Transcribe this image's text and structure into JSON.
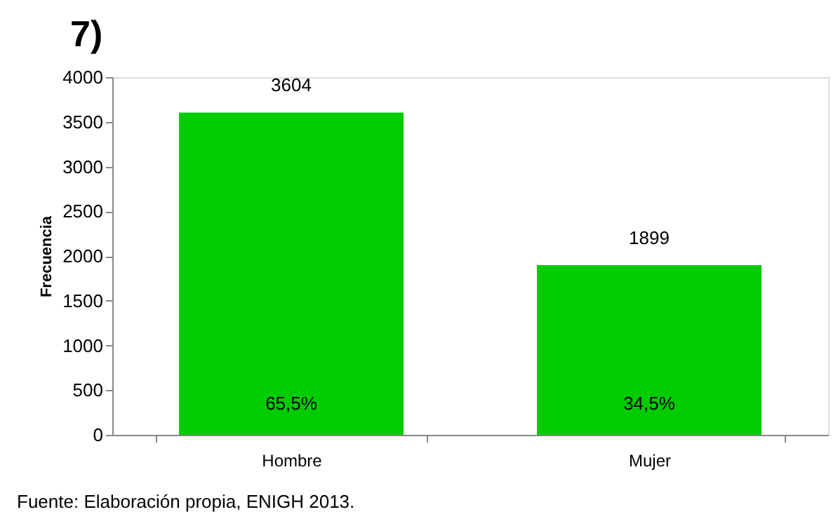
{
  "chart_data": {
    "type": "bar",
    "title": "7)",
    "ylabel": "Frecuencia",
    "categories": [
      "Hombre",
      "Mujer"
    ],
    "values": [
      3604,
      1899
    ],
    "color": "#00cc00",
    "ylim": [
      0,
      4000
    ],
    "yticks": [
      0,
      500,
      1000,
      1500,
      2000,
      2500,
      3000,
      3500,
      4000
    ],
    "data_labels": true,
    "grid": false,
    "annotations": [
      "65,5%",
      "34,5%",
      "Fuente: Elaboración propia, ENIGH 2013."
    ]
  }
}
